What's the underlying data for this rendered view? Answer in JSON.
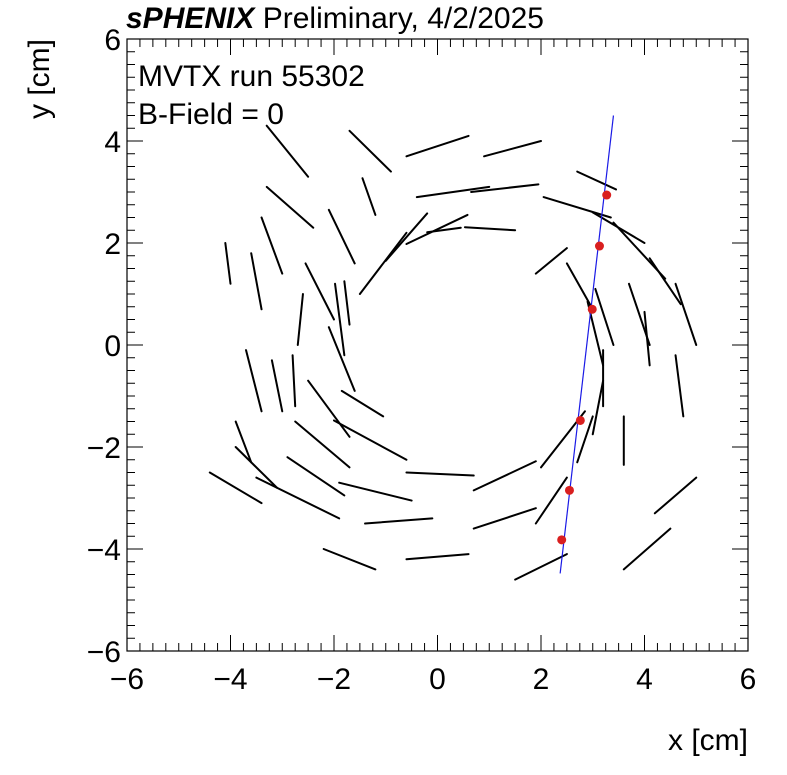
{
  "header": {
    "brand": "sPHENIX",
    "rest": " Preliminary, 4/2/2025"
  },
  "annotations": [
    "MVTX run 55302",
    "B-Field = 0"
  ],
  "chart_data": {
    "type": "scatter",
    "xlabel": "x [cm]",
    "ylabel": "y [cm]",
    "xlim": [
      -6,
      6
    ],
    "ylim": [
      -6,
      6
    ],
    "x_ticks": [
      -6,
      -4,
      -2,
      0,
      2,
      4,
      6
    ],
    "y_ticks": [
      -6,
      -4,
      -2,
      0,
      2,
      4,
      6
    ],
    "x_tick_labels": [
      "−6",
      "−4",
      "−2",
      "0",
      "2",
      "4",
      "6"
    ],
    "y_tick_labels": [
      "−6",
      "−4",
      "−2",
      "0",
      "2",
      "4",
      "6"
    ],
    "grid": false,
    "staves": [
      [
        1.5,
        2.25,
        0.53,
        2.31
      ],
      [
        0.45,
        2.3,
        -0.2,
        2.21
      ],
      [
        -0.6,
        1.98,
        0.58,
        2.55
      ],
      [
        -1.0,
        1.65,
        -0.2,
        2.58
      ],
      [
        -1.5,
        1.0,
        -0.6,
        2.2
      ],
      [
        -1.7,
        0.4,
        -1.8,
        1.25
      ],
      [
        -1.8,
        -0.2,
        -1.98,
        1.2
      ],
      [
        -1.6,
        -0.9,
        -2.1,
        0.35
      ],
      [
        -1.85,
        -0.9,
        -1.05,
        -1.4
      ],
      [
        -0.6,
        -2.25,
        -2.0,
        -1.48
      ],
      [
        -0.6,
        -2.5,
        0.7,
        -2.56
      ],
      [
        0.7,
        -2.85,
        1.9,
        -2.28
      ],
      [
        2.0,
        -2.4,
        2.85,
        -1.3
      ],
      [
        3.0,
        -1.75,
        3.2,
        -0.7
      ],
      [
        3.2,
        -0.4,
        2.9,
        0.85
      ],
      [
        3.0,
        0.7,
        2.5,
        1.6
      ],
      [
        2.5,
        1.9,
        1.9,
        1.4
      ],
      [
        2.05,
        2.9,
        3.35,
        2.5
      ],
      [
        0.65,
        3.0,
        1.95,
        3.15
      ],
      [
        -0.4,
        2.9,
        1.0,
        3.1
      ],
      [
        -1.2,
        2.55,
        -1.45,
        3.27
      ],
      [
        -1.6,
        1.6,
        -2.1,
        2.65
      ],
      [
        -2.0,
        0.5,
        -2.55,
        1.6
      ],
      [
        -2.6,
        1.0,
        -2.7,
        0.0
      ],
      [
        -2.8,
        -0.2,
        -2.75,
        -1.2
      ],
      [
        -1.7,
        -1.8,
        -2.5,
        -0.7
      ],
      [
        -1.7,
        -2.4,
        -2.75,
        -1.5
      ],
      [
        -1.9,
        -2.7,
        -0.5,
        -3.05
      ],
      [
        -1.8,
        -2.95,
        -2.9,
        -2.2
      ],
      [
        -1.9,
        -3.4,
        -3.5,
        -2.6
      ],
      [
        -1.4,
        -3.5,
        -0.1,
        -3.4
      ],
      [
        0.7,
        -3.6,
        1.9,
        -3.2
      ],
      [
        1.9,
        -3.5,
        2.5,
        -2.6
      ],
      [
        2.7,
        -2.3,
        3.0,
        -1.4
      ],
      [
        3.6,
        -2.35,
        3.6,
        -1.4
      ],
      [
        3.2,
        -1.2,
        3.2,
        -0.1
      ],
      [
        3.4,
        0.0,
        3.05,
        1.1
      ],
      [
        4.1,
        0.0,
        3.7,
        1.2
      ],
      [
        4.75,
        -1.4,
        4.6,
        -0.2
      ],
      [
        4.1,
        -0.4,
        4.0,
        0.65
      ],
      [
        4.7,
        0.8,
        4.1,
        1.7
      ],
      [
        5.0,
        0.0,
        4.6,
        1.2
      ],
      [
        4.4,
        1.3,
        3.4,
        2.4
      ],
      [
        3.0,
        2.6,
        4.0,
        2.0
      ],
      [
        2.7,
        3.4,
        3.45,
        3.05
      ],
      [
        0.9,
        3.7,
        2.0,
        4.0
      ],
      [
        0.6,
        4.1,
        -0.6,
        3.7
      ],
      [
        -0.9,
        3.4,
        -1.7,
        4.2
      ],
      [
        -3.4,
        0.7,
        -3.6,
        1.8
      ],
      [
        -3.0,
        1.4,
        -3.4,
        2.5
      ],
      [
        -2.4,
        2.3,
        -3.3,
        3.1
      ],
      [
        -2.5,
        3.3,
        -3.3,
        4.3
      ],
      [
        -4.0,
        1.2,
        -4.1,
        2.0
      ],
      [
        -3.7,
        -0.1,
        -3.4,
        -1.3
      ],
      [
        -3.2,
        -0.3,
        -3.0,
        -1.3
      ],
      [
        -3.9,
        -1.5,
        -3.6,
        -2.3
      ],
      [
        -3.1,
        -2.8,
        -3.9,
        -2.0
      ],
      [
        -3.4,
        -3.1,
        -4.4,
        -2.5
      ],
      [
        -0.6,
        -4.2,
        0.6,
        -4.1
      ],
      [
        -1.2,
        -4.4,
        -2.2,
        -4.0
      ],
      [
        1.5,
        -4.6,
        2.5,
        -4.1
      ],
      [
        3.6,
        -4.4,
        4.5,
        -3.6
      ],
      [
        4.2,
        -3.3,
        5.0,
        -2.6
      ]
    ],
    "series": [
      {
        "type": "scatter",
        "color": "#d91f1f",
        "x": [
          3.27,
          3.13,
          2.99,
          2.76,
          2.55,
          2.4
        ],
        "y": [
          2.94,
          1.94,
          0.7,
          -1.48,
          -2.85,
          -3.82
        ]
      },
      {
        "type": "line",
        "color": "#1a1ae6",
        "x": [
          3.4,
          2.37
        ],
        "y": [
          4.5,
          -4.48
        ]
      }
    ]
  }
}
